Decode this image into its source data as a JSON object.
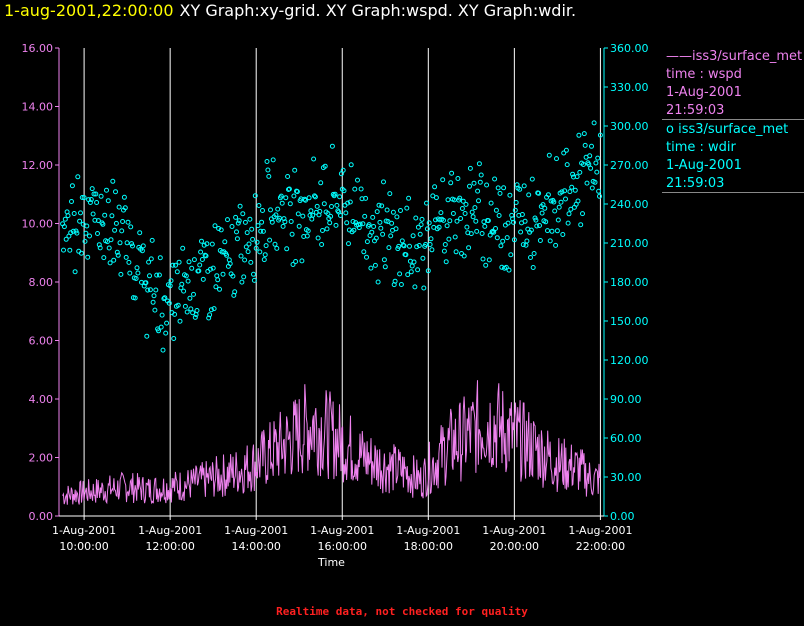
{
  "header": {
    "time_label": "1-aug-2001,22:00:00",
    "graphs_label": "XY Graph:xy-grid.  XY Graph:wspd.  XY Graph:wdir."
  },
  "legend": {
    "wspd": {
      "line1": "——iss3/surface_met",
      "line2": "time : wspd",
      "line3": "1-Aug-2001",
      "line4": "21:59:03"
    },
    "wdir": {
      "line1": "o  iss3/surface_met",
      "line2": "time : wdir",
      "line3": "1-Aug-2001",
      "line4": "21:59:03"
    }
  },
  "footer": {
    "note": "Realtime data, not checked for quality"
  },
  "colors": {
    "wspd": "#ee82ee",
    "wdir": "#00ffff",
    "grid": "#ffffff",
    "background": "#000000",
    "title_time": "#ffff00",
    "footer": "#ff2020"
  },
  "chart_data": {
    "type": "line",
    "xlabel": "Time",
    "x_ticks": [
      {
        "date": "1-Aug-2001",
        "time": "10:00:00"
      },
      {
        "date": "1-Aug-2001",
        "time": "12:00:00"
      },
      {
        "date": "1-Aug-2001",
        "time": "14:00:00"
      },
      {
        "date": "1-Aug-2001",
        "time": "16:00:00"
      },
      {
        "date": "1-Aug-2001",
        "time": "18:00:00"
      },
      {
        "date": "1-Aug-2001",
        "time": "20:00:00"
      },
      {
        "date": "1-Aug-2001",
        "time": "22:00:00"
      }
    ],
    "xlim": [
      "1-Aug-2001 09:25:00",
      "1-Aug-2001 22:05:00"
    ],
    "y_left": {
      "lim": [
        0,
        16
      ],
      "ticks": [
        "0.00",
        "2.00",
        "4.00",
        "6.00",
        "8.00",
        "10.00",
        "12.00",
        "14.00",
        "16.00"
      ]
    },
    "y_right": {
      "lim": [
        0,
        360
      ],
      "ticks": [
        "0.00",
        "30.00",
        "60.00",
        "90.00",
        "120.00",
        "150.00",
        "180.00",
        "210.00",
        "240.00",
        "270.00",
        "300.00",
        "330.00",
        "360.00"
      ]
    },
    "grid": "vertical lines at x ticks",
    "series": [
      {
        "name": "iss3/surface_met time : wspd",
        "type": "line",
        "axis": "left",
        "times": [
          "09:30",
          "10:00",
          "10:30",
          "11:00",
          "11:30",
          "12:00",
          "12:30",
          "13:00",
          "13:30",
          "14:00",
          "14:30",
          "15:00",
          "15:20",
          "15:40",
          "16:00",
          "16:30",
          "17:00",
          "17:30",
          "17:50",
          "18:00",
          "18:30",
          "19:00",
          "19:20",
          "19:40",
          "20:00",
          "20:30",
          "21:00",
          "21:30",
          "21:50",
          "22:00"
        ],
        "values": [
          0.7,
          0.8,
          0.9,
          1.0,
          0.9,
          1.0,
          1.1,
          1.3,
          1.5,
          1.8,
          2.3,
          2.8,
          3.2,
          2.8,
          2.5,
          2.0,
          1.7,
          1.5,
          1.2,
          1.6,
          2.4,
          2.8,
          3.3,
          3.0,
          2.7,
          2.3,
          1.8,
          1.6,
          1.2,
          1.3
        ]
      },
      {
        "name": "iss3/surface_met time : wdir",
        "type": "scatter",
        "axis": "right",
        "times": [
          "09:30",
          "10:00",
          "10:30",
          "11:00",
          "11:30",
          "12:00",
          "12:30",
          "13:00",
          "13:30",
          "14:00",
          "14:30",
          "15:00",
          "15:30",
          "16:00",
          "16:30",
          "17:00",
          "17:30",
          "18:00",
          "18:30",
          "19:00",
          "19:30",
          "20:00",
          "20:30",
          "21:00",
          "21:30",
          "22:00"
        ],
        "values": [
          215,
          235,
          225,
          210,
          175,
          160,
          185,
          190,
          200,
          225,
          240,
          235,
          240,
          245,
          230,
          215,
          205,
          215,
          230,
          235,
          230,
          225,
          235,
          245,
          255,
          275
        ]
      }
    ]
  }
}
